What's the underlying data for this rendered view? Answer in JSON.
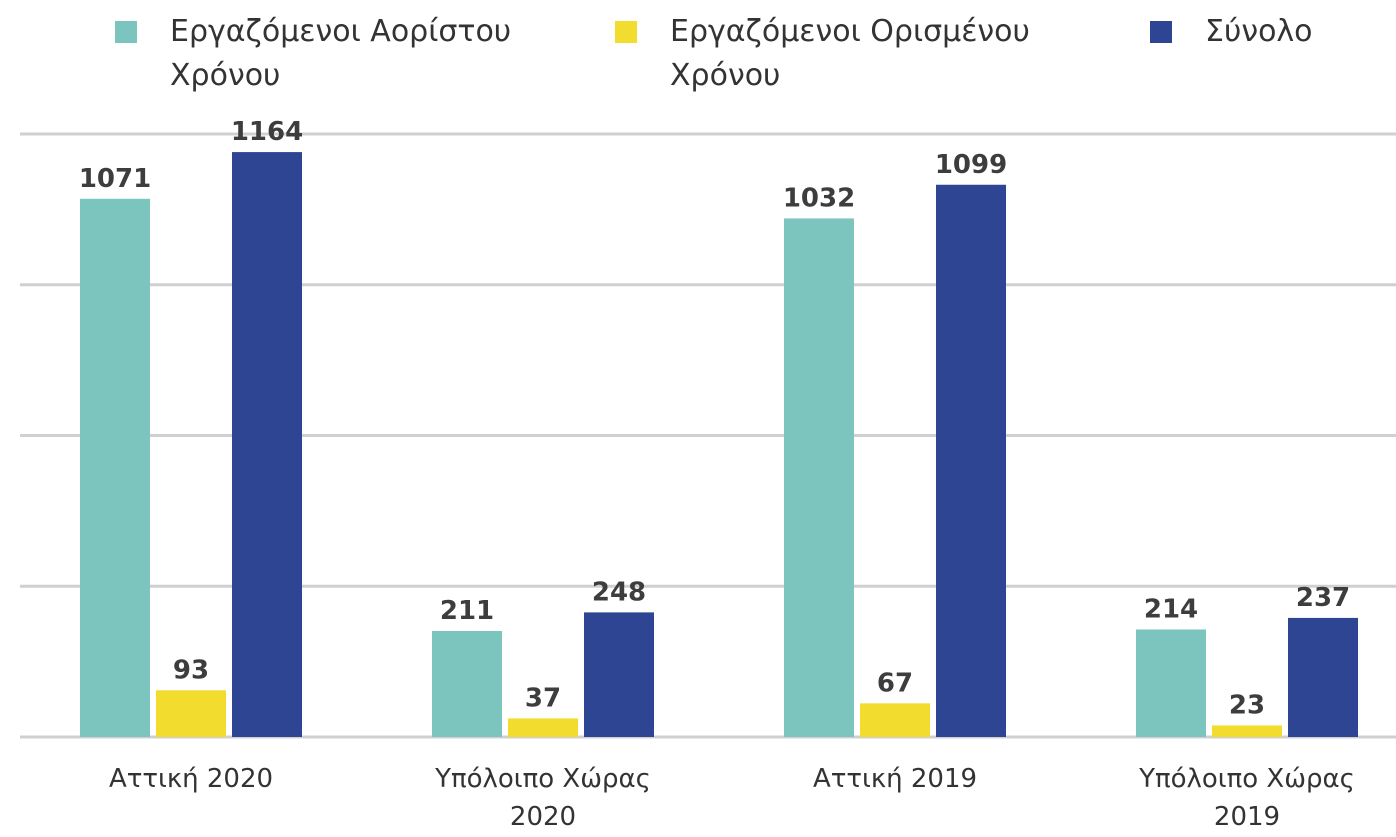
{
  "chart_data": {
    "type": "bar",
    "categories": [
      "Αττική 2020",
      "Υπόλοιπο Χώρας 2020",
      "Αττική 2019",
      "Υπόλοιπο Χώρας 2019"
    ],
    "series": [
      {
        "name": "Εργαζόμενοι Αορίστου Χρόνου",
        "color": "#7cc5bf",
        "values": [
          1071,
          211,
          1032,
          214
        ]
      },
      {
        "name": "Εργαζόμενοι Ορισμένου Χρόνου",
        "color": "#f2dc2e",
        "values": [
          93,
          37,
          67,
          23
        ]
      },
      {
        "name": "Σύνολο",
        "color": "#2e4593",
        "values": [
          1164,
          248,
          1099,
          237
        ]
      }
    ],
    "ylim": [
      0,
      1200
    ],
    "yticks": [
      0,
      300,
      600,
      900,
      1200
    ],
    "grid": true
  }
}
